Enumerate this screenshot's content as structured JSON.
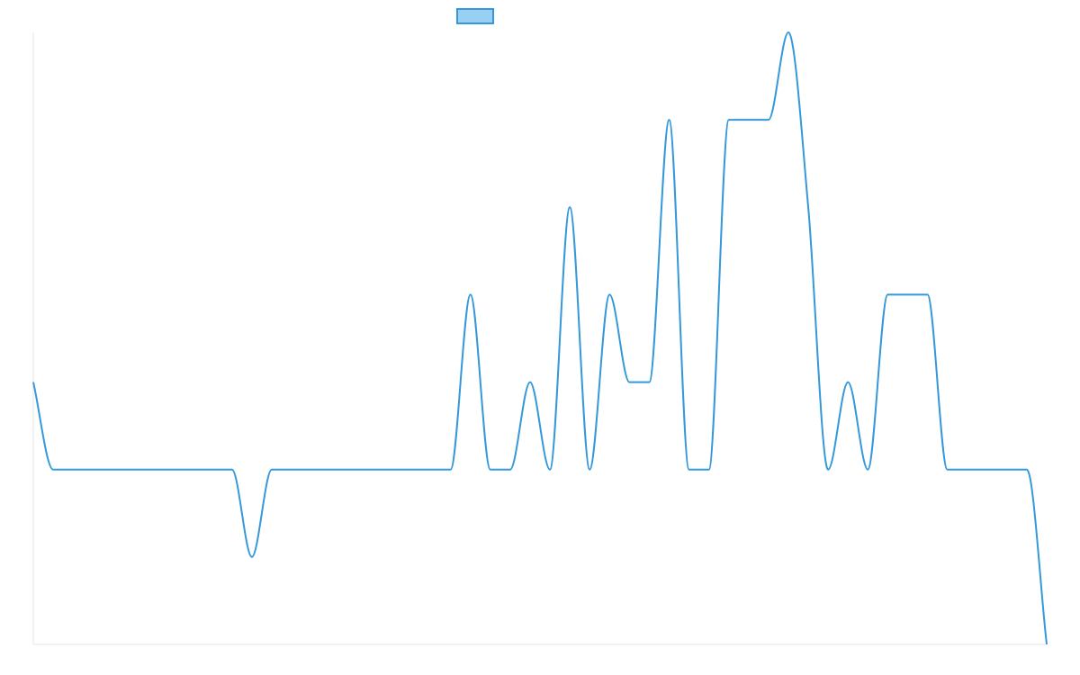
{
  "chart_data": {
    "type": "line",
    "title": "",
    "xlabel": "",
    "ylabel": "",
    "x": [
      0,
      1,
      2,
      3,
      4,
      5,
      6,
      7,
      8,
      9,
      10,
      11,
      12,
      13,
      14,
      15,
      16,
      17,
      18,
      19,
      20,
      21,
      22,
      23,
      24,
      25,
      26,
      27,
      28,
      29,
      30,
      31,
      32,
      33,
      34,
      35,
      36,
      37,
      38,
      39,
      40,
      41,
      42,
      43,
      44,
      45,
      46,
      47,
      48,
      49,
      50,
      51
    ],
    "series": [
      {
        "name": "",
        "color": "#3498db",
        "values": [
          1,
          0,
          0,
          0,
          0,
          0,
          0,
          0,
          0,
          0,
          0,
          -1,
          0,
          0,
          0,
          0,
          0,
          0,
          0,
          0,
          0,
          0,
          2,
          0,
          0,
          1,
          0,
          3,
          0,
          2,
          1,
          1,
          4,
          0,
          0,
          4,
          4,
          4,
          5,
          3,
          0,
          1,
          0,
          2,
          2,
          2,
          0,
          0,
          0,
          0,
          0,
          -2
        ]
      }
    ],
    "ylim": [
      -2,
      5
    ],
    "grid": false,
    "legend": {
      "position": "top",
      "swatch_fill": "#99cff3",
      "swatch_border": "#3498db"
    },
    "interpolation": "smooth"
  }
}
